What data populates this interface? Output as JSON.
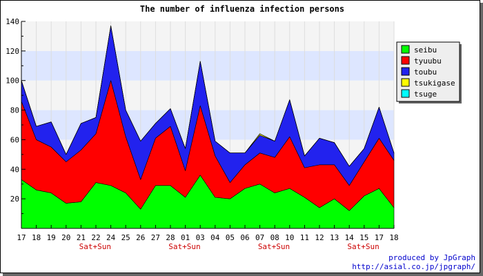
{
  "chart_data": {
    "type": "area",
    "stacked": true,
    "title": "The number of influenza infection persons",
    "xlabel": "",
    "ylabel": "",
    "ylim": [
      0,
      140
    ],
    "yticks": [
      20,
      40,
      60,
      80,
      100,
      120,
      140
    ],
    "grid": true,
    "legend_position": "top-right",
    "categories": [
      "17",
      "18",
      "19",
      "20",
      "21",
      "22",
      "24",
      "25",
      "26",
      "27",
      "28",
      "01",
      "03",
      "04",
      "05",
      "06",
      "07",
      "08",
      "10",
      "11",
      "12",
      "13",
      "14",
      "15",
      "17",
      "18"
    ],
    "weekend_label": "Sat+Sun",
    "weekend_label_positions": [
      5,
      11,
      17,
      23
    ],
    "series": [
      {
        "name": "seibu",
        "color": "#00ff00",
        "values": [
          33,
          26,
          24,
          17,
          18,
          31,
          29,
          24,
          13,
          29,
          29,
          21,
          36,
          21,
          20,
          27,
          30,
          24,
          27,
          21,
          14,
          20,
          12,
          22,
          27,
          14
        ]
      },
      {
        "name": "tyuubu",
        "color": "#ff0000",
        "values": [
          53,
          34,
          31,
          28,
          35,
          33,
          71,
          38,
          20,
          32,
          40,
          18,
          47,
          28,
          11,
          16,
          21,
          24,
          35,
          20,
          29,
          23,
          17,
          23,
          34,
          32
        ]
      },
      {
        "name": "toubu",
        "color": "#2222ee",
        "values": [
          14,
          9,
          17,
          5,
          18,
          11,
          37,
          18,
          26,
          10,
          12,
          15,
          30,
          10,
          20,
          8,
          12,
          11,
          25,
          8,
          18,
          15,
          13,
          9,
          21,
          5
        ]
      },
      {
        "name": "tsukigase",
        "color": "#ffff00",
        "values": [
          0,
          0,
          0,
          0,
          0,
          0,
          0,
          0,
          0,
          0,
          0,
          0,
          0,
          0,
          0,
          0,
          1,
          0,
          0,
          0,
          0,
          0,
          0,
          0,
          0,
          0
        ]
      },
      {
        "name": "tsuge",
        "color": "#00ffff",
        "values": [
          0,
          0,
          0,
          0,
          0,
          0,
          0,
          0,
          0,
          0,
          0,
          0,
          0,
          0,
          0,
          0,
          0,
          0,
          0,
          0,
          0,
          0,
          0,
          0,
          0,
          0
        ]
      }
    ],
    "band_colors": [
      "#f4f4f4",
      "#dde6ff"
    ]
  },
  "footer": {
    "credit_line1": "produced by JpGraph",
    "credit_line2": "http://asial.co.jp/jpgraph/",
    "credit_color": "#0000cc"
  }
}
